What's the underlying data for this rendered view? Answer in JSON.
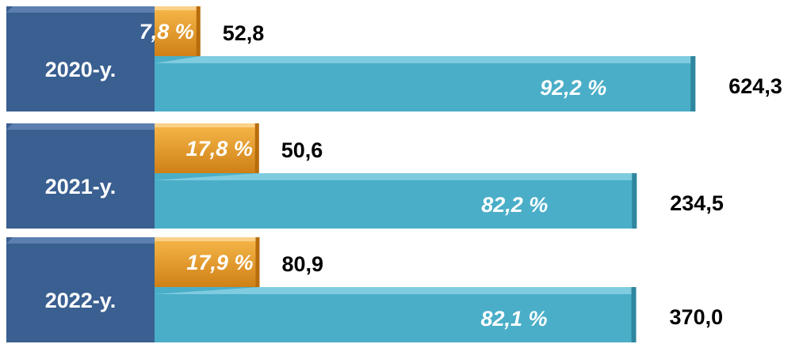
{
  "chart_data": {
    "type": "bar",
    "categories": [
      "2020-y.",
      "2021-y.",
      "2022-y."
    ],
    "series": [
      {
        "color": "#f0a12e",
        "values": [
          7.8,
          17.8,
          17.9
        ],
        "value_labels": [
          "7,8 %",
          "17,8 %",
          "17,9 %"
        ],
        "amounts": [
          52.8,
          50.6,
          80.9
        ],
        "amount_labels": [
          "52,8",
          "50,6",
          "80,9"
        ]
      },
      {
        "color": "#4aaec8",
        "values": [
          92.2,
          82.2,
          82.1
        ],
        "value_labels": [
          "92,2 %",
          "82,2 %",
          "82,1 %"
        ],
        "amounts": [
          624.3,
          234.5,
          370.0
        ],
        "amount_labels": [
          "624,3",
          "234,5",
          "370,0"
        ]
      }
    ],
    "category_color": "#3a5f91"
  }
}
